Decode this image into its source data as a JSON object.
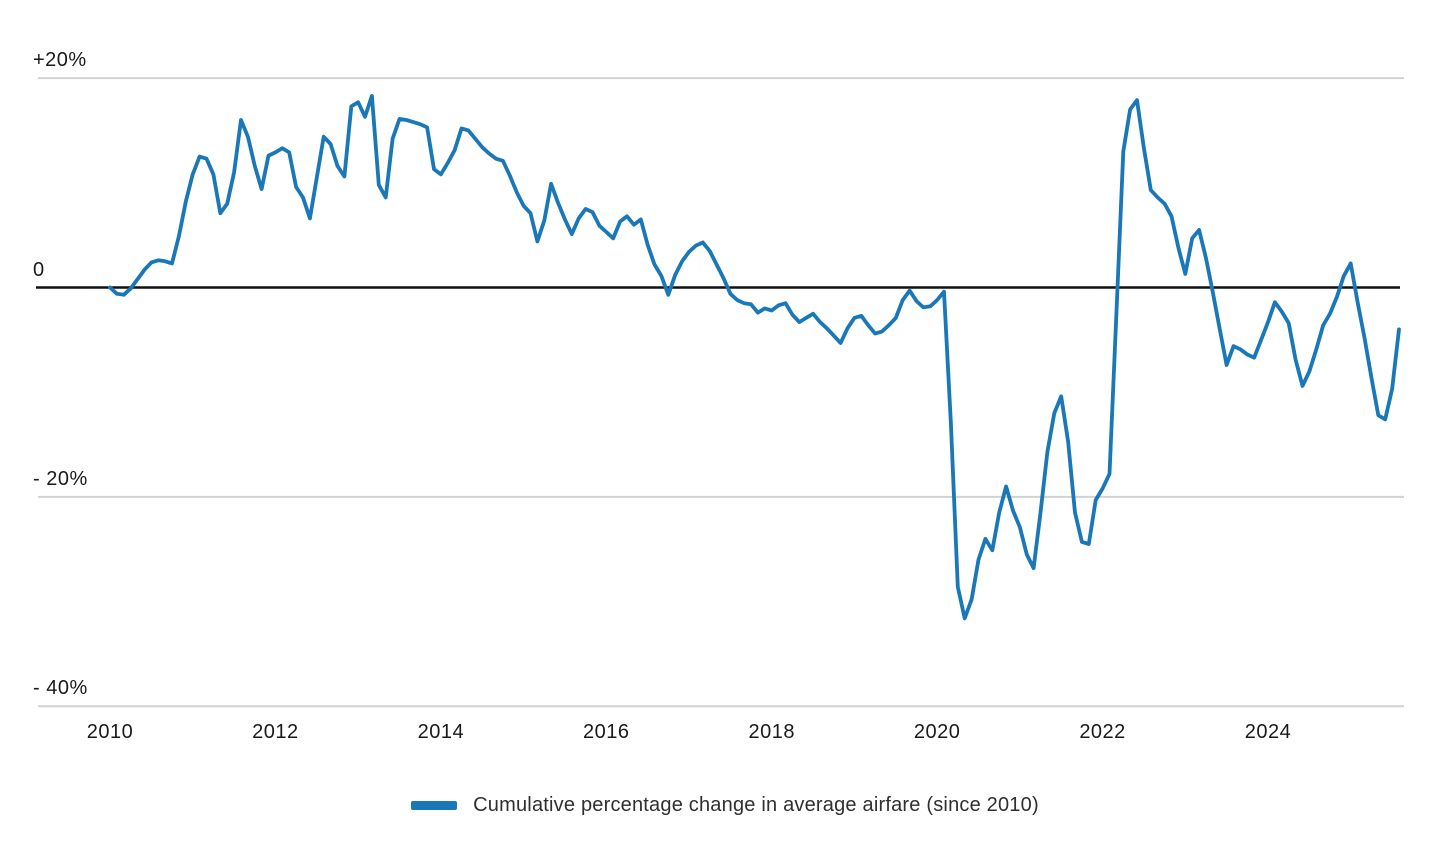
{
  "colors": {
    "line": "#1a78b8",
    "gridline": "#d2d2d2",
    "zero_line": "#111111",
    "tick_text": "#1a1a1a"
  },
  "legend": {
    "label": "Cumulative percentage change in average airfare (since 2010)"
  },
  "chart_data": {
    "type": "line",
    "title": "",
    "xlabel": "",
    "ylabel": "",
    "grid": "horizontal",
    "legend_position": "bottom-center",
    "zero_baseline": true,
    "ylim": [
      -42,
      24
    ],
    "y_ticks": [
      {
        "label": "+20%",
        "value": 20,
        "zero": false
      },
      {
        "label": "0",
        "value": 0,
        "zero": true
      },
      {
        "label": "- 20%",
        "value": -20,
        "zero": false
      },
      {
        "label": "- 40%",
        "value": -40,
        "zero": false
      }
    ],
    "x_ticks": [
      {
        "label": "2010",
        "month_index": 0
      },
      {
        "label": "2012",
        "month_index": 24
      },
      {
        "label": "2014",
        "month_index": 48
      },
      {
        "label": "2016",
        "month_index": 72
      },
      {
        "label": "2018",
        "month_index": 96
      },
      {
        "label": "2020",
        "month_index": 120
      },
      {
        "label": "2022",
        "month_index": 144
      },
      {
        "label": "2024",
        "month_index": 168
      }
    ],
    "series": [
      {
        "name": "Cumulative percentage change in average airfare (since 2010)",
        "color": "#1a78b8",
        "frequency": "monthly",
        "x_start": "2010-01",
        "x_end": "2025-08",
        "unit": "percent",
        "values": [
          0.0,
          -0.6,
          -0.7,
          -0.1,
          0.8,
          1.7,
          2.4,
          2.6,
          2.5,
          2.3,
          4.9,
          8.2,
          10.8,
          12.5,
          12.3,
          10.8,
          7.1,
          8.0,
          11.0,
          16.0,
          14.4,
          11.6,
          9.4,
          12.6,
          12.9,
          13.3,
          12.9,
          9.6,
          8.6,
          6.6,
          10.5,
          14.4,
          13.7,
          11.6,
          10.6,
          17.3,
          17.7,
          16.3,
          18.3,
          9.8,
          8.6,
          14.2,
          16.1,
          16.0,
          15.8,
          15.6,
          15.3,
          11.3,
          10.8,
          11.9,
          13.1,
          15.2,
          15.0,
          14.2,
          13.4,
          12.8,
          12.3,
          12.1,
          10.7,
          9.1,
          7.8,
          7.1,
          4.4,
          6.4,
          9.9,
          8.1,
          6.5,
          5.1,
          6.6,
          7.5,
          7.2,
          5.9,
          5.3,
          4.7,
          6.3,
          6.8,
          6.0,
          6.5,
          4.1,
          2.2,
          1.1,
          -0.7,
          1.2,
          2.5,
          3.4,
          4.0,
          4.3,
          3.5,
          2.2,
          0.9,
          -0.6,
          -1.2,
          -1.5,
          -1.6,
          -2.4,
          -2.0,
          -2.2,
          -1.7,
          -1.5,
          -2.6,
          -3.3,
          -2.9,
          -2.5,
          -3.3,
          -3.9,
          -4.6,
          -5.3,
          -3.9,
          -2.9,
          -2.7,
          -3.6,
          -4.4,
          -4.2,
          -3.6,
          -2.9,
          -1.2,
          -0.3,
          -1.3,
          -1.9,
          -1.8,
          -1.2,
          -0.4,
          -13.0,
          -28.6,
          -31.6,
          -29.8,
          -26.0,
          -24.0,
          -25.1,
          -21.5,
          -19.0,
          -21.3,
          -22.9,
          -25.5,
          -26.8,
          -21.5,
          -15.7,
          -12.0,
          -10.4,
          -14.7,
          -21.5,
          -24.3,
          -24.5,
          -20.3,
          -19.2,
          -17.8,
          -2.5,
          13.0,
          17.0,
          17.9,
          13.3,
          9.3,
          8.6,
          8.0,
          6.8,
          3.8,
          1.3,
          4.7,
          5.5,
          2.8,
          -0.5,
          -4.0,
          -7.4,
          -5.6,
          -5.9,
          -6.4,
          -6.7,
          -5.0,
          -3.3,
          -1.4,
          -2.3,
          -3.4,
          -6.9,
          -9.4,
          -8.0,
          -5.9,
          -3.6,
          -2.5,
          -0.9,
          1.1,
          2.3,
          -1.4,
          -4.8,
          -8.6,
          -12.2,
          -12.6,
          -9.7,
          -4.0
        ]
      }
    ]
  }
}
